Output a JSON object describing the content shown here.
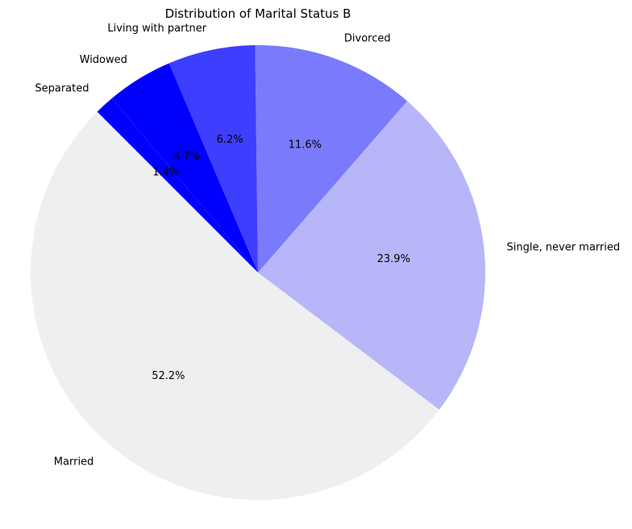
{
  "chart_data": {
    "type": "pie",
    "title": "Distribution of Marital Status B",
    "start_angle_deg": 135,
    "direction": "counterclockwise",
    "slices": [
      {
        "label": "Married",
        "value": 52.2,
        "pct_label": "52.2%",
        "color": "#efeff2"
      },
      {
        "label": "Single, never married",
        "value": 23.9,
        "pct_label": "23.9%",
        "color": "#b6b6f8"
      },
      {
        "label": "Divorced",
        "value": 11.6,
        "pct_label": "11.6%",
        "color": "#7a7afc"
      },
      {
        "label": "Living with partner",
        "value": 6.2,
        "pct_label": "6.2%",
        "color": "#3e3efe"
      },
      {
        "label": "Widowed",
        "value": 4.7,
        "pct_label": "4.7%",
        "color": "#0000ff"
      },
      {
        "label": "Separated",
        "value": 1.4,
        "pct_label": "1.4%",
        "color": "#0000ff"
      }
    ]
  }
}
